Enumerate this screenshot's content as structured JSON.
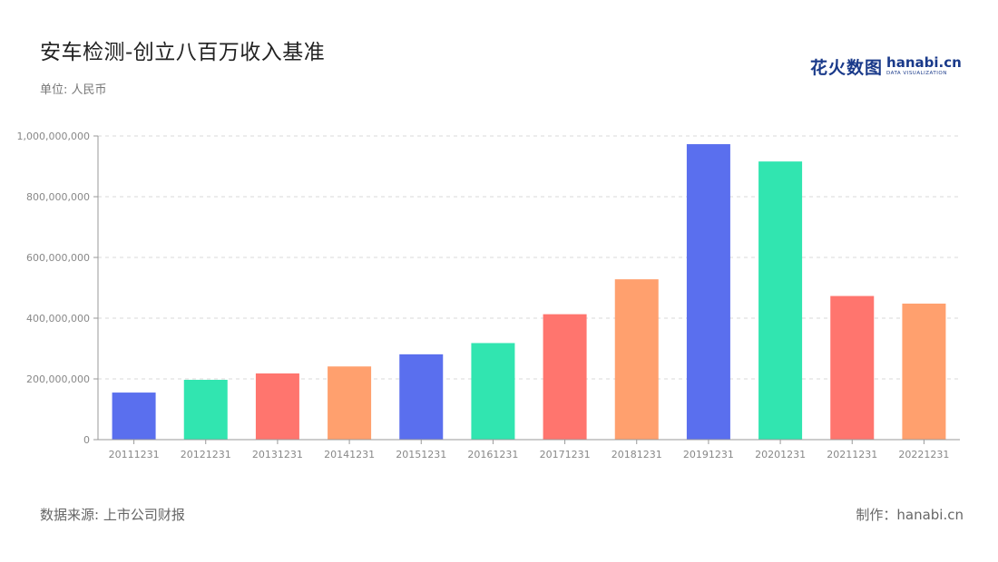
{
  "header": {
    "title": "安车检测-创立八百万收入基准",
    "unit": "单位: 人民币"
  },
  "logo": {
    "cn": "花火数图",
    "en": "hanabi.cn",
    "en_sub": "DATA VISUALIZATION"
  },
  "footer": {
    "source": "数据来源: 上市公司财报",
    "credit": "制作：hanabi.cn"
  },
  "chart_data": {
    "type": "bar",
    "title": "安车检测-创立八百万收入基准",
    "ylabel": "",
    "xlabel": "",
    "ylim": [
      0,
      1000000000
    ],
    "yticks": [
      0,
      200000000,
      400000000,
      600000000,
      800000000,
      1000000000
    ],
    "ytick_labels": [
      "0",
      "200,000,000",
      "400,000,000",
      "600,000,000",
      "800,000,000",
      "1,000,000,000"
    ],
    "grid": true,
    "categories": [
      "20111231",
      "20121231",
      "20131231",
      "20141231",
      "20151231",
      "20161231",
      "20171231",
      "20181231",
      "20191231",
      "20201231",
      "20211231",
      "20221231"
    ],
    "values": [
      155000000,
      197000000,
      218000000,
      241000000,
      281000000,
      318000000,
      413000000,
      528000000,
      973000000,
      916000000,
      473000000,
      448000000
    ],
    "colors": [
      "#5a6fee",
      "#31e5b0",
      "#ff756e",
      "#ffa06e",
      "#5a6fee",
      "#31e5b0",
      "#ff756e",
      "#ffa06e",
      "#5a6fee",
      "#31e5b0",
      "#ff756e",
      "#ffa06e"
    ]
  }
}
